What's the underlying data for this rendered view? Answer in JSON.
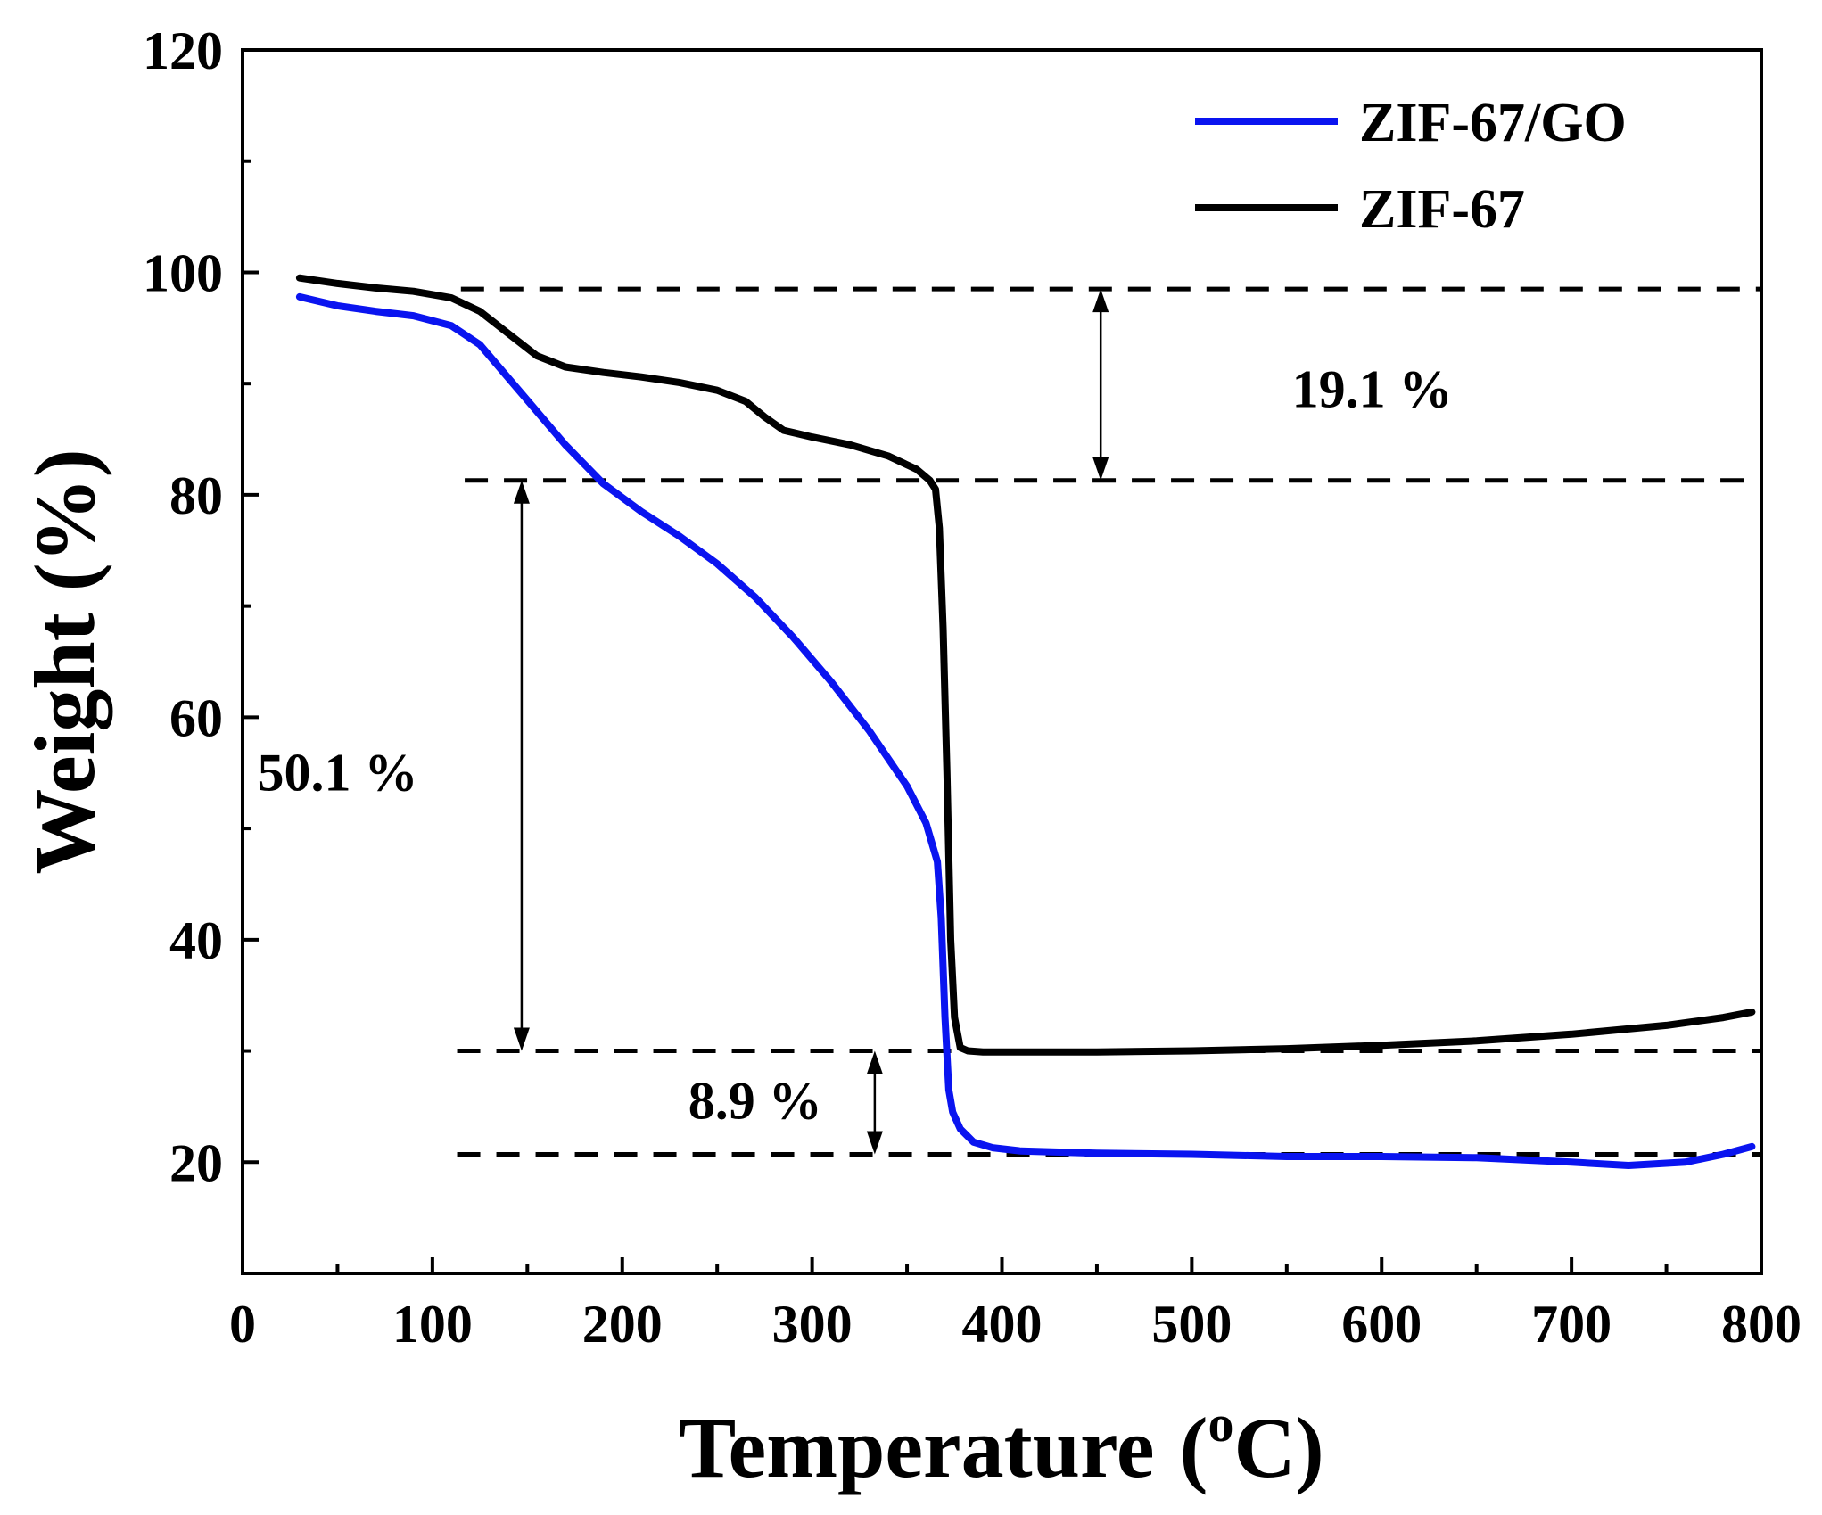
{
  "chart_data": {
    "type": "line",
    "title": "",
    "xlabel": "Temperature",
    "xlabel_unit_sup": "o",
    "xlabel_unit": "C",
    "xlabel_paren_open": "(",
    "xlabel_paren_close": ")",
    "ylabel": "Weight (%)",
    "xlim": [
      0,
      800
    ],
    "ylim": [
      10,
      120
    ],
    "x_ticks": [
      0,
      100,
      200,
      300,
      400,
      500,
      600,
      700,
      800
    ],
    "y_ticks": [
      20,
      40,
      60,
      80,
      100,
      120
    ],
    "legend_position": "top-right",
    "series": [
      {
        "name": "ZIF-67/GO",
        "color": "#0a14f0",
        "x": [
          30,
          50,
          70,
          90,
          110,
          125,
          140,
          155,
          170,
          190,
          210,
          230,
          250,
          270,
          290,
          310,
          330,
          350,
          360,
          366,
          368,
          370,
          372,
          374,
          378,
          385,
          395,
          410,
          450,
          500,
          550,
          600,
          650,
          700,
          730,
          760,
          780,
          795
        ],
        "y": [
          97.8,
          97.0,
          96.5,
          96.1,
          95.2,
          93.5,
          90.5,
          87.5,
          84.5,
          81.0,
          78.5,
          76.3,
          73.8,
          70.8,
          67.2,
          63.2,
          58.8,
          53.8,
          50.5,
          47.0,
          42.0,
          33.0,
          26.5,
          24.5,
          23.0,
          21.8,
          21.3,
          21.0,
          20.8,
          20.7,
          20.5,
          20.5,
          20.4,
          20.0,
          19.7,
          20.0,
          20.7,
          21.4
        ]
      },
      {
        "name": "ZIF-67",
        "color": "#000000",
        "x": [
          30,
          50,
          70,
          90,
          110,
          125,
          140,
          155,
          170,
          190,
          210,
          230,
          250,
          265,
          275,
          285,
          300,
          320,
          340,
          355,
          362,
          365,
          367,
          369,
          371,
          373,
          375,
          378,
          382,
          390,
          400,
          450,
          500,
          550,
          600,
          650,
          700,
          750,
          780,
          795
        ],
        "y": [
          99.5,
          99.0,
          98.6,
          98.3,
          97.7,
          96.5,
          94.5,
          92.5,
          91.5,
          91.0,
          90.6,
          90.1,
          89.4,
          88.4,
          87.0,
          85.8,
          85.2,
          84.5,
          83.5,
          82.3,
          81.3,
          80.5,
          77.0,
          68.0,
          55.0,
          40.0,
          33.0,
          30.3,
          30.0,
          29.9,
          29.9,
          29.9,
          30.0,
          30.2,
          30.5,
          30.9,
          31.5,
          32.3,
          33.0,
          33.5
        ]
      }
    ],
    "reference_lines": [
      {
        "y": 98.5,
        "x_start": 115,
        "x_end": 800
      },
      {
        "y": 81.3,
        "x_start": 117,
        "x_end": 800
      },
      {
        "y": 30.0,
        "x_start": 113,
        "x_end": 800
      },
      {
        "y": 20.7,
        "x_start": 113,
        "x_end": 800
      }
    ],
    "annotations": [
      {
        "text": "19.1 %",
        "arrow_x": 452,
        "y_from": 98.5,
        "y_to": 81.3,
        "label_x": 595,
        "label_y": 89.5
      },
      {
        "text": "50.1 %",
        "arrow_x": 147,
        "y_from": 81.3,
        "y_to": 30.0,
        "label_x": 50,
        "label_y": 55.0
      },
      {
        "text": "8.9 %",
        "arrow_x": 333,
        "y_from": 30.0,
        "y_to": 20.7,
        "label_x": 270,
        "label_y": 25.5
      }
    ]
  }
}
